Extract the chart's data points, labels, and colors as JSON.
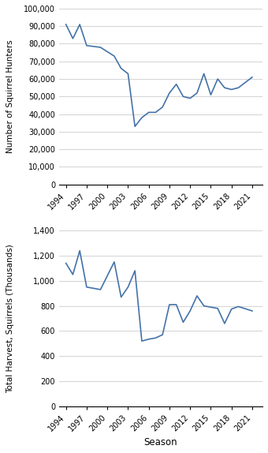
{
  "seasons": [
    1994,
    1995,
    1996,
    1997,
    1998,
    1999,
    2000,
    2001,
    2002,
    2003,
    2004,
    2005,
    2006,
    2007,
    2008,
    2009,
    2010,
    2011,
    2012,
    2013,
    2014,
    2015,
    2016,
    2017,
    2018,
    2019,
    2020,
    2021
  ],
  "hunters": [
    91000,
    83000,
    91000,
    79000,
    73000,
    78000,
    66000,
    63000,
    33000,
    38000,
    41000,
    41000,
    44000,
    52000,
    57000,
    50000,
    49000,
    52000,
    63000,
    51000,
    60000,
    55000,
    54000,
    55000,
    61000
  ],
  "harvest": [
    1140,
    1050,
    1240,
    950,
    930,
    1150,
    870,
    950,
    1080,
    520,
    535,
    545,
    570,
    810,
    810,
    670,
    760,
    880,
    800,
    790,
    780,
    660,
    775,
    795,
    760
  ],
  "hunters_seasons": [
    1994,
    1995,
    1996,
    1997,
    1999,
    2001,
    2002,
    2003,
    2004,
    2005,
    2006,
    2007,
    2008,
    2009,
    2010,
    2011,
    2012,
    2013,
    2014,
    2015,
    2016,
    2017,
    2018,
    2019,
    2021
  ],
  "harvest_seasons": [
    1994,
    1995,
    1996,
    1997,
    1999,
    2001,
    2002,
    2003,
    2004,
    2005,
    2006,
    2007,
    2008,
    2009,
    2010,
    2011,
    2012,
    2013,
    2014,
    2015,
    2016,
    2017,
    2018,
    2019,
    2021
  ],
  "line_color": "#4472a8",
  "bg_color": "#ffffff",
  "ylabel1": "Number of Squirrel Hunters",
  "ylabel2": "Total Harvest, Squirrels (Thousands)",
  "xlabel": "Season",
  "xtick_labels": [
    "1994",
    "1997",
    "2000",
    "2003",
    "2006",
    "2009",
    "2012",
    "2015",
    "2018",
    "2021"
  ],
  "xtick_positions": [
    1994,
    1997,
    2000,
    2003,
    2006,
    2009,
    2012,
    2015,
    2018,
    2021
  ],
  "ylim1": [
    0,
    100000
  ],
  "ylim2": [
    0,
    1400
  ],
  "yticks1": [
    0,
    10000,
    20000,
    30000,
    40000,
    50000,
    60000,
    70000,
    80000,
    90000,
    100000
  ],
  "yticks2": [
    0,
    200,
    400,
    600,
    800,
    1000,
    1200,
    1400
  ]
}
